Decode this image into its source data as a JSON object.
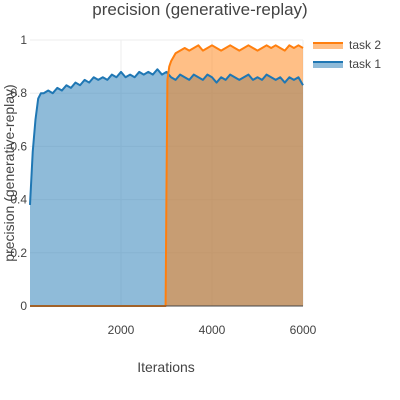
{
  "chart_data": {
    "type": "area",
    "title": "precision (generative-replay)",
    "xlabel": "Iterations",
    "ylabel": "precision (generative-replay)",
    "xlim": [
      0,
      6000
    ],
    "ylim": [
      0,
      1
    ],
    "x_ticks": [
      2000,
      4000,
      6000
    ],
    "x_tick_labels": [
      "2000",
      "4000",
      "6000"
    ],
    "y_ticks": [
      0,
      0.2,
      0.4,
      0.6,
      0.8,
      1
    ],
    "y_tick_labels": [
      "0",
      "0.2",
      "0.4",
      "0.6",
      "0.8",
      "1"
    ],
    "grid": true,
    "legend_position": "right",
    "series": [
      {
        "name": "task 1",
        "color": "#1f77b4",
        "fill": "rgba(31,119,180,0.5)",
        "x": [
          0,
          60,
          120,
          180,
          240,
          300,
          400,
          500,
          600,
          700,
          800,
          900,
          1000,
          1100,
          1200,
          1300,
          1400,
          1500,
          1600,
          1700,
          1800,
          1900,
          2000,
          2100,
          2200,
          2300,
          2400,
          2500,
          2600,
          2700,
          2800,
          2900,
          3000,
          3100,
          3200,
          3300,
          3400,
          3500,
          3600,
          3700,
          3800,
          3900,
          4000,
          4100,
          4200,
          4300,
          4400,
          4500,
          4600,
          4700,
          4800,
          4900,
          5000,
          5100,
          5200,
          5300,
          5400,
          5500,
          5600,
          5700,
          5800,
          5900,
          6000
        ],
        "y": [
          0.38,
          0.58,
          0.7,
          0.78,
          0.8,
          0.8,
          0.81,
          0.8,
          0.82,
          0.81,
          0.83,
          0.82,
          0.84,
          0.83,
          0.85,
          0.84,
          0.86,
          0.85,
          0.86,
          0.85,
          0.87,
          0.86,
          0.88,
          0.86,
          0.87,
          0.86,
          0.88,
          0.87,
          0.88,
          0.87,
          0.89,
          0.87,
          0.88,
          0.86,
          0.85,
          0.87,
          0.86,
          0.85,
          0.87,
          0.86,
          0.85,
          0.87,
          0.86,
          0.84,
          0.86,
          0.85,
          0.87,
          0.86,
          0.85,
          0.86,
          0.87,
          0.85,
          0.86,
          0.85,
          0.87,
          0.86,
          0.85,
          0.86,
          0.84,
          0.86,
          0.85,
          0.86,
          0.83
        ]
      },
      {
        "name": "task 2",
        "color": "#ff7f0e",
        "fill": "rgba(255,127,14,0.5)",
        "x": [
          0,
          500,
          1000,
          1500,
          2000,
          2500,
          2980,
          3000,
          3020,
          3060,
          3100,
          3200,
          3300,
          3400,
          3500,
          3600,
          3700,
          3800,
          3900,
          4000,
          4100,
          4200,
          4300,
          4400,
          4500,
          4600,
          4700,
          4800,
          4900,
          5000,
          5100,
          5200,
          5300,
          5400,
          5500,
          5600,
          5700,
          5800,
          5900,
          6000
        ],
        "y": [
          0,
          0,
          0,
          0,
          0,
          0,
          0,
          0.45,
          0.85,
          0.9,
          0.92,
          0.95,
          0.96,
          0.97,
          0.96,
          0.97,
          0.98,
          0.96,
          0.97,
          0.98,
          0.97,
          0.96,
          0.97,
          0.98,
          0.97,
          0.96,
          0.97,
          0.98,
          0.97,
          0.96,
          0.97,
          0.98,
          0.97,
          0.98,
          0.97,
          0.96,
          0.98,
          0.97,
          0.98,
          0.97
        ]
      }
    ],
    "legend_order": [
      "task 2",
      "task 1"
    ]
  }
}
